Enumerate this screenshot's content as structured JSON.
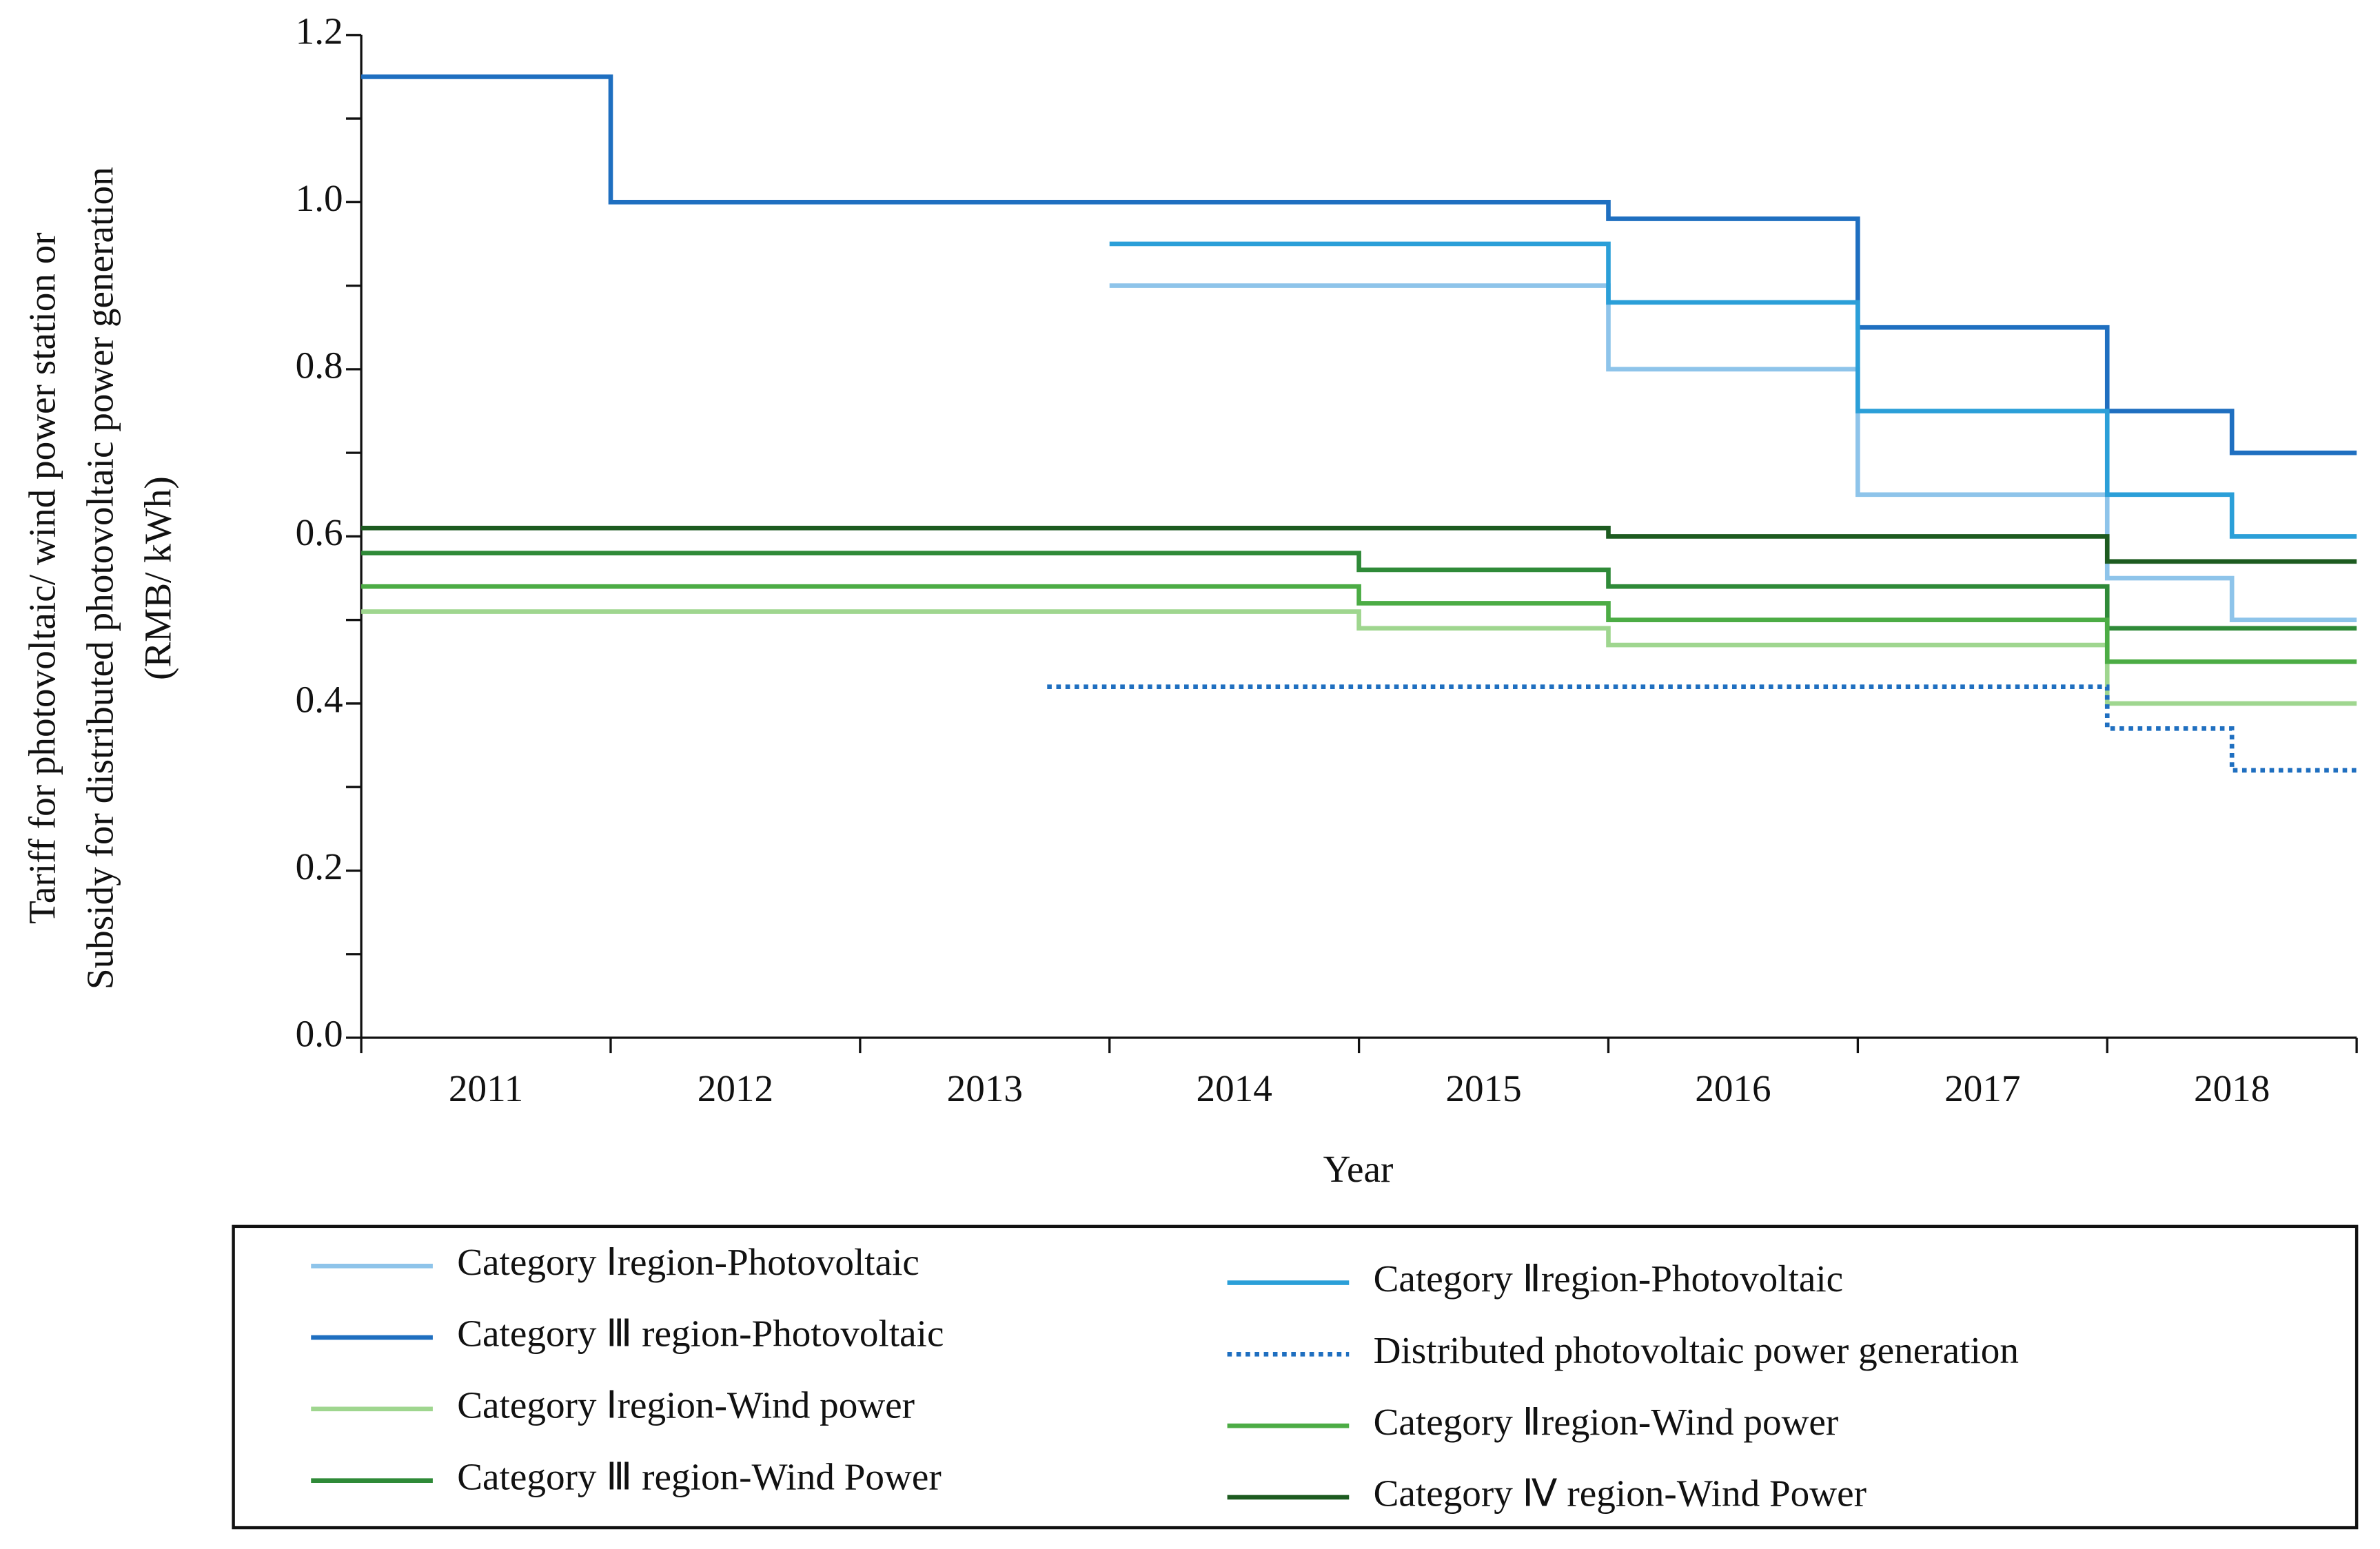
{
  "chart_data": {
    "type": "step",
    "x_label": "Year",
    "y_label": [
      "Tariff for photovoltaic/ wind power station or",
      "Subsidy for distributed photovoltaic power generation",
      "(RMB/ kWh)"
    ],
    "xlim": [
      2010.5,
      2018.5
    ],
    "xticks": [
      2011,
      2012,
      2013,
      2014,
      2015,
      2016,
      2017,
      2018
    ],
    "ylim": [
      0,
      1.2
    ],
    "yticks": [
      {
        "value": 0,
        "label": "0.0"
      },
      0.2,
      0.4,
      0.6,
      0.8,
      {
        "value": 1,
        "label": "1.0"
      },
      1.2
    ],
    "series": [
      {
        "name": "Category Ⅰregion-Photovoltaic",
        "color": "#8ec4ea",
        "style": "solid",
        "x": [
          2013.5,
          2015.5,
          2016.5,
          2017.5,
          2018.0,
          2018.5
        ],
        "values": [
          0.9,
          0.8,
          0.65,
          0.55,
          0.5,
          0.5
        ]
      },
      {
        "name": "Category Ⅲ region-Photovoltaic",
        "color": "#1f6fc0",
        "style": "solid",
        "x": [
          2010.5,
          2011.5,
          2015.5,
          2016.5,
          2017.5,
          2018.0,
          2018.5
        ],
        "values": [
          1.15,
          1.0,
          0.98,
          0.85,
          0.75,
          0.7,
          0.7
        ]
      },
      {
        "name": "Category Ⅰregion-Wind power",
        "color": "#9fd68f",
        "style": "solid",
        "x": [
          2010.5,
          2014.5,
          2015.5,
          2017.5,
          2018.5
        ],
        "values": [
          0.51,
          0.49,
          0.47,
          0.4,
          0.4
        ]
      },
      {
        "name": "Category Ⅲ region-Wind Power",
        "color": "#2f8a38",
        "style": "solid",
        "x": [
          2010.5,
          2014.5,
          2015.5,
          2017.5,
          2018.5
        ],
        "values": [
          0.58,
          0.56,
          0.54,
          0.49,
          0.49
        ]
      },
      {
        "name": "Category Ⅱregion-Photovoltaic",
        "color": "#2b9fd8",
        "style": "solid",
        "x": [
          2013.5,
          2015.5,
          2016.5,
          2017.5,
          2018.0,
          2018.5
        ],
        "values": [
          0.95,
          0.88,
          0.75,
          0.65,
          0.6,
          0.6
        ]
      },
      {
        "name": "Distributed photovoltaic power generation",
        "color": "#1f6fc0",
        "style": "dotted",
        "x": [
          2013.25,
          2017.5,
          2018.0,
          2018.5
        ],
        "values": [
          0.42,
          0.37,
          0.32,
          0.32
        ]
      },
      {
        "name": "Category Ⅱregion-Wind power",
        "color": "#4cac45",
        "style": "solid",
        "x": [
          2010.5,
          2014.5,
          2015.5,
          2017.5,
          2018.5
        ],
        "values": [
          0.54,
          0.52,
          0.5,
          0.45,
          0.45
        ]
      },
      {
        "name": "Category Ⅳ region-Wind Power",
        "color": "#1d5b20",
        "style": "solid",
        "x": [
          2010.5,
          2015.5,
          2017.5,
          2018.5
        ],
        "values": [
          0.61,
          0.6,
          0.57,
          0.57
        ]
      }
    ]
  }
}
